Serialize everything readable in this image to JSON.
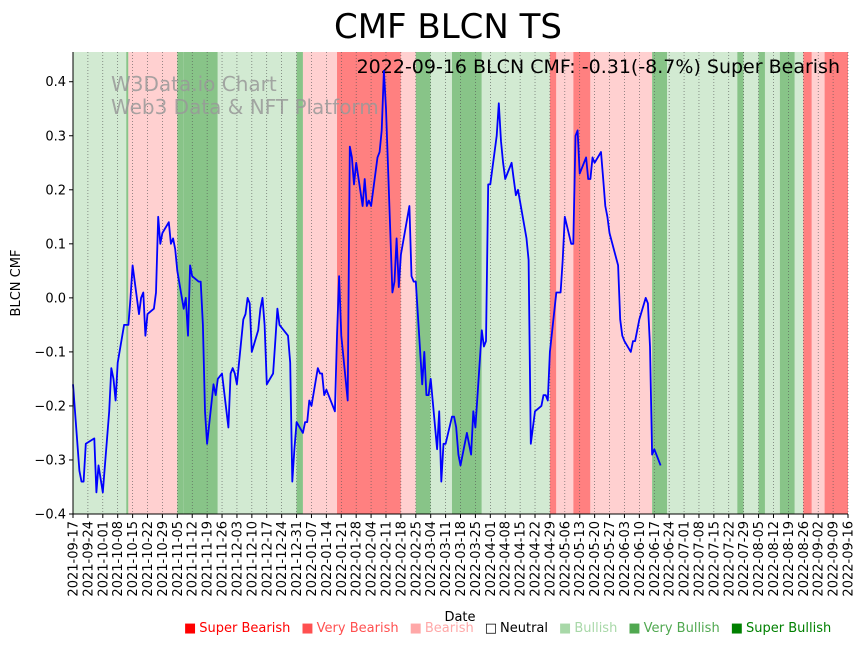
{
  "chart_data": {
    "type": "line",
    "title": "CMF BLCN TS",
    "annotation": "2022-09-16 BLCN CMF: -0.31(-8.7%) Super Bearish",
    "watermark": [
      "W3Data.io Chart",
      "Web3 Data & NFT Platform"
    ],
    "xlabel": "Date",
    "ylabel": "BLCN CMF",
    "x_range": [
      "2021-09-17",
      "2022-09-16"
    ],
    "ylim": [
      -0.4,
      0.455
    ],
    "yticks": [
      "0.4",
      "0.3",
      "0.2",
      "0.1",
      "0.0",
      "−0.1",
      "−0.2",
      "−0.3",
      "−0.4"
    ],
    "xticks": [
      "2021-09-17",
      "2021-09-24",
      "2021-10-01",
      "2021-10-08",
      "2021-10-15",
      "2021-10-22",
      "2021-10-29",
      "2021-11-05",
      "2021-11-12",
      "2021-11-19",
      "2021-11-26",
      "2021-12-03",
      "2021-12-10",
      "2021-12-17",
      "2021-12-24",
      "2021-12-31",
      "2022-01-07",
      "2022-01-14",
      "2022-01-21",
      "2022-01-28",
      "2022-02-04",
      "2022-02-11",
      "2022-02-18",
      "2022-02-25",
      "2022-03-04",
      "2022-03-11",
      "2022-03-18",
      "2022-03-25",
      "2022-04-01",
      "2022-04-08",
      "2022-04-15",
      "2022-04-22",
      "2022-04-29",
      "2022-05-06",
      "2022-05-13",
      "2022-05-20",
      "2022-05-27",
      "2022-06-03",
      "2022-06-10",
      "2022-06-17",
      "2022-06-24",
      "2022-07-01",
      "2022-07-08",
      "2022-07-15",
      "2022-07-22",
      "2022-07-29",
      "2022-08-05",
      "2022-08-12",
      "2022-08-19",
      "2022-08-26",
      "2022-09-02",
      "2022-09-09",
      "2022-09-16"
    ],
    "grid": "vertical dotted",
    "legend_position": "bottom-right",
    "series": [
      {
        "color": "#0000ff",
        "points": [
          [
            "2021-09-17",
            -0.16
          ],
          [
            "2021-09-20",
            -0.32
          ],
          [
            "2021-09-21",
            -0.34
          ],
          [
            "2021-09-22",
            -0.34
          ],
          [
            "2021-09-23",
            -0.27
          ],
          [
            "2021-09-27",
            -0.26
          ],
          [
            "2021-09-28",
            -0.36
          ],
          [
            "2021-09-29",
            -0.31
          ],
          [
            "2021-10-01",
            -0.36
          ],
          [
            "2021-10-04",
            -0.21
          ],
          [
            "2021-10-05",
            -0.13
          ],
          [
            "2021-10-06",
            -0.15
          ],
          [
            "2021-10-07",
            -0.19
          ],
          [
            "2021-10-08",
            -0.12
          ],
          [
            "2021-10-11",
            -0.05
          ],
          [
            "2021-10-12",
            -0.05
          ],
          [
            "2021-10-13",
            -0.05
          ],
          [
            "2021-10-14",
            0.0
          ],
          [
            "2021-10-15",
            0.06
          ],
          [
            "2021-10-18",
            -0.03
          ],
          [
            "2021-10-19",
            0.0
          ],
          [
            "2021-10-20",
            0.01
          ],
          [
            "2021-10-21",
            -0.07
          ],
          [
            "2021-10-22",
            -0.03
          ],
          [
            "2021-10-25",
            -0.02
          ],
          [
            "2021-10-26",
            0.01
          ],
          [
            "2021-10-27",
            0.15
          ],
          [
            "2021-10-28",
            0.1
          ],
          [
            "2021-10-29",
            0.12
          ],
          [
            "2021-11-01",
            0.14
          ],
          [
            "2021-11-02",
            0.1
          ],
          [
            "2021-11-03",
            0.11
          ],
          [
            "2021-11-04",
            0.09
          ],
          [
            "2021-11-05",
            0.05
          ],
          [
            "2021-11-08",
            -0.02
          ],
          [
            "2021-11-09",
            0.0
          ],
          [
            "2021-11-10",
            -0.07
          ],
          [
            "2021-11-11",
            0.06
          ],
          [
            "2021-11-12",
            0.04
          ],
          [
            "2021-11-15",
            0.03
          ],
          [
            "2021-11-16",
            0.03
          ],
          [
            "2021-11-17",
            -0.05
          ],
          [
            "2021-11-18",
            -0.21
          ],
          [
            "2021-11-19",
            -0.27
          ],
          [
            "2021-11-22",
            -0.16
          ],
          [
            "2021-11-23",
            -0.18
          ],
          [
            "2021-11-24",
            -0.15
          ],
          [
            "2021-11-26",
            -0.14
          ],
          [
            "2021-11-29",
            -0.24
          ],
          [
            "2021-11-30",
            -0.14
          ],
          [
            "2021-12-01",
            -0.13
          ],
          [
            "2021-12-02",
            -0.14
          ],
          [
            "2021-12-03",
            -0.16
          ],
          [
            "2021-12-06",
            -0.04
          ],
          [
            "2021-12-07",
            -0.03
          ],
          [
            "2021-12-08",
            0.0
          ],
          [
            "2021-12-09",
            -0.01
          ],
          [
            "2021-12-10",
            -0.1
          ],
          [
            "2021-12-13",
            -0.06
          ],
          [
            "2021-12-14",
            -0.02
          ],
          [
            "2021-12-15",
            0.0
          ],
          [
            "2021-12-16",
            -0.05
          ],
          [
            "2021-12-17",
            -0.16
          ],
          [
            "2021-12-20",
            -0.14
          ],
          [
            "2021-12-21",
            -0.08
          ],
          [
            "2021-12-22",
            -0.02
          ],
          [
            "2021-12-23",
            -0.05
          ],
          [
            "2021-12-27",
            -0.07
          ],
          [
            "2021-12-28",
            -0.12
          ],
          [
            "2021-12-29",
            -0.34
          ],
          [
            "2021-12-30",
            -0.28
          ],
          [
            "2021-12-31",
            -0.23
          ],
          [
            "2022-01-03",
            -0.25
          ],
          [
            "2022-01-04",
            -0.23
          ],
          [
            "2022-01-05",
            -0.23
          ],
          [
            "2022-01-06",
            -0.19
          ],
          [
            "2022-01-07",
            -0.2
          ],
          [
            "2022-01-10",
            -0.13
          ],
          [
            "2022-01-11",
            -0.14
          ],
          [
            "2022-01-12",
            -0.14
          ],
          [
            "2022-01-13",
            -0.18
          ],
          [
            "2022-01-14",
            -0.17
          ],
          [
            "2022-01-18",
            -0.21
          ],
          [
            "2022-01-19",
            -0.07
          ],
          [
            "2022-01-20",
            0.04
          ],
          [
            "2022-01-21",
            -0.07
          ],
          [
            "2022-01-24",
            -0.19
          ],
          [
            "2022-01-25",
            0.28
          ],
          [
            "2022-01-26",
            0.26
          ],
          [
            "2022-01-27",
            0.21
          ],
          [
            "2022-01-28",
            0.25
          ],
          [
            "2022-01-31",
            0.17
          ],
          [
            "2022-02-01",
            0.22
          ],
          [
            "2022-02-02",
            0.17
          ],
          [
            "2022-02-03",
            0.18
          ],
          [
            "2022-02-04",
            0.17
          ],
          [
            "2022-02-07",
            0.26
          ],
          [
            "2022-02-08",
            0.27
          ],
          [
            "2022-02-09",
            0.31
          ],
          [
            "2022-02-10",
            0.42
          ],
          [
            "2022-02-11",
            0.35
          ],
          [
            "2022-02-14",
            0.01
          ],
          [
            "2022-02-15",
            0.03
          ],
          [
            "2022-02-16",
            0.11
          ],
          [
            "2022-02-17",
            0.02
          ],
          [
            "2022-02-18",
            0.08
          ],
          [
            "2022-02-22",
            0.17
          ],
          [
            "2022-02-23",
            0.04
          ],
          [
            "2022-02-24",
            0.03
          ],
          [
            "2022-02-25",
            0.03
          ],
          [
            "2022-02-28",
            -0.16
          ],
          [
            "2022-03-01",
            -0.1
          ],
          [
            "2022-03-02",
            -0.18
          ],
          [
            "2022-03-03",
            -0.18
          ],
          [
            "2022-03-04",
            -0.15
          ],
          [
            "2022-03-07",
            -0.28
          ],
          [
            "2022-03-08",
            -0.21
          ],
          [
            "2022-03-09",
            -0.34
          ],
          [
            "2022-03-10",
            -0.27
          ],
          [
            "2022-03-11",
            -0.27
          ],
          [
            "2022-03-14",
            -0.22
          ],
          [
            "2022-03-15",
            -0.22
          ],
          [
            "2022-03-16",
            -0.24
          ],
          [
            "2022-03-17",
            -0.29
          ],
          [
            "2022-03-18",
            -0.31
          ],
          [
            "2022-03-21",
            -0.25
          ],
          [
            "2022-03-22",
            -0.27
          ],
          [
            "2022-03-23",
            -0.29
          ],
          [
            "2022-03-24",
            -0.21
          ],
          [
            "2022-03-25",
            -0.24
          ],
          [
            "2022-03-28",
            -0.06
          ],
          [
            "2022-03-29",
            -0.09
          ],
          [
            "2022-03-30",
            -0.08
          ],
          [
            "2022-03-31",
            0.21
          ],
          [
            "2022-04-01",
            0.21
          ],
          [
            "2022-04-04",
            0.3
          ],
          [
            "2022-04-05",
            0.36
          ],
          [
            "2022-04-06",
            0.29
          ],
          [
            "2022-04-07",
            0.25
          ],
          [
            "2022-04-08",
            0.22
          ],
          [
            "2022-04-11",
            0.25
          ],
          [
            "2022-04-12",
            0.22
          ],
          [
            "2022-04-13",
            0.19
          ],
          [
            "2022-04-14",
            0.2
          ],
          [
            "2022-04-18",
            0.11
          ],
          [
            "2022-04-19",
            0.07
          ],
          [
            "2022-04-20",
            -0.27
          ],
          [
            "2022-04-21",
            -0.24
          ],
          [
            "2022-04-22",
            -0.21
          ],
          [
            "2022-04-25",
            -0.2
          ],
          [
            "2022-04-26",
            -0.18
          ],
          [
            "2022-04-27",
            -0.18
          ],
          [
            "2022-04-28",
            -0.19
          ],
          [
            "2022-04-29",
            -0.1
          ],
          [
            "2022-05-02",
            0.01
          ],
          [
            "2022-05-03",
            0.01
          ],
          [
            "2022-05-04",
            0.01
          ],
          [
            "2022-05-05",
            0.07
          ],
          [
            "2022-05-06",
            0.15
          ],
          [
            "2022-05-09",
            0.1
          ],
          [
            "2022-05-10",
            0.1
          ],
          [
            "2022-05-11",
            0.3
          ],
          [
            "2022-05-12",
            0.31
          ],
          [
            "2022-05-13",
            0.23
          ],
          [
            "2022-05-16",
            0.26
          ],
          [
            "2022-05-17",
            0.22
          ],
          [
            "2022-05-18",
            0.22
          ],
          [
            "2022-05-19",
            0.26
          ],
          [
            "2022-05-20",
            0.25
          ],
          [
            "2022-05-23",
            0.27
          ],
          [
            "2022-05-24",
            0.22
          ],
          [
            "2022-05-25",
            0.17
          ],
          [
            "2022-05-26",
            0.15
          ],
          [
            "2022-05-27",
            0.12
          ],
          [
            "2022-05-31",
            0.06
          ],
          [
            "2022-06-01",
            -0.04
          ],
          [
            "2022-06-02",
            -0.07
          ],
          [
            "2022-06-03",
            -0.08
          ],
          [
            "2022-06-06",
            -0.1
          ],
          [
            "2022-06-07",
            -0.08
          ],
          [
            "2022-06-08",
            -0.08
          ],
          [
            "2022-06-09",
            -0.06
          ],
          [
            "2022-06-10",
            -0.04
          ],
          [
            "2022-06-13",
            0.0
          ],
          [
            "2022-06-14",
            -0.01
          ],
          [
            "2022-06-15",
            -0.09
          ],
          [
            "2022-06-16",
            -0.29
          ],
          [
            "2022-06-17",
            -0.28
          ],
          [
            "2022-06-20",
            -0.31
          ]
        ]
      }
    ],
    "legend": [
      {
        "label": "Super Bearish",
        "color": "#ff0000"
      },
      {
        "label": "Very Bearish",
        "color": "#ff5050"
      },
      {
        "label": "Bearish",
        "color": "#ffa8a8"
      },
      {
        "label": "Neutral",
        "color": "#000000"
      },
      {
        "label": "Bullish",
        "color": "#a8d8a8"
      },
      {
        "label": "Very Bullish",
        "color": "#50a850"
      },
      {
        "label": "Super Bullish",
        "color": "#008000"
      }
    ],
    "bands": [
      {
        "from": "2021-09-17",
        "to": "2021-10-12",
        "level": "Bullish"
      },
      {
        "from": "2021-10-12",
        "to": "2021-10-13",
        "level": "Very Bullish"
      },
      {
        "from": "2021-10-13",
        "to": "2021-11-05",
        "level": "Bearish"
      },
      {
        "from": "2021-11-05",
        "to": "2021-11-08",
        "level": "Very Bullish"
      },
      {
        "from": "2021-11-08",
        "to": "2021-11-24",
        "level": "Very Bullish"
      },
      {
        "from": "2021-11-24",
        "to": "2021-12-31",
        "level": "Bullish"
      },
      {
        "from": "2021-12-31",
        "to": "2022-01-03",
        "level": "Very Bullish"
      },
      {
        "from": "2022-01-03",
        "to": "2022-01-19",
        "level": "Bearish"
      },
      {
        "from": "2022-01-19",
        "to": "2022-02-11",
        "level": "Very Bearish"
      },
      {
        "from": "2022-02-11",
        "to": "2022-02-18",
        "level": "Very Bearish"
      },
      {
        "from": "2022-02-18",
        "to": "2022-02-25",
        "level": "Bearish"
      },
      {
        "from": "2022-02-25",
        "to": "2022-03-04",
        "level": "Very Bullish"
      },
      {
        "from": "2022-03-04",
        "to": "2022-03-14",
        "level": "Bullish"
      },
      {
        "from": "2022-03-14",
        "to": "2022-03-28",
        "level": "Very Bullish"
      },
      {
        "from": "2022-03-28",
        "to": "2022-04-29",
        "level": "Bullish"
      },
      {
        "from": "2022-04-29",
        "to": "2022-05-02",
        "level": "Very Bearish"
      },
      {
        "from": "2022-05-02",
        "to": "2022-05-10",
        "level": "Bearish"
      },
      {
        "from": "2022-05-10",
        "to": "2022-05-18",
        "level": "Very Bearish"
      },
      {
        "from": "2022-05-18",
        "to": "2022-06-16",
        "level": "Bearish"
      },
      {
        "from": "2022-06-16",
        "to": "2022-06-23",
        "level": "Very Bullish"
      },
      {
        "from": "2022-06-23",
        "to": "2022-07-26",
        "level": "Bullish"
      },
      {
        "from": "2022-07-26",
        "to": "2022-07-29",
        "level": "Very Bullish"
      },
      {
        "from": "2022-07-29",
        "to": "2022-08-05",
        "level": "Bullish"
      },
      {
        "from": "2022-08-05",
        "to": "2022-08-08",
        "level": "Very Bullish"
      },
      {
        "from": "2022-08-08",
        "to": "2022-08-15",
        "level": "Bullish"
      },
      {
        "from": "2022-08-15",
        "to": "2022-08-22",
        "level": "Very Bullish"
      },
      {
        "from": "2022-08-22",
        "to": "2022-08-26",
        "level": "Bullish"
      },
      {
        "from": "2022-08-26",
        "to": "2022-08-30",
        "level": "Very Bearish"
      },
      {
        "from": "2022-08-30",
        "to": "2022-09-05",
        "level": "Bearish"
      },
      {
        "from": "2022-09-05",
        "to": "2022-09-16",
        "level": "Very Bearish"
      }
    ],
    "band_colors": {
      "Bearish": "#ffd0d0",
      "Very Bearish": "#ff8080",
      "Bullish": "#d2ead2",
      "Very Bullish": "#88c488",
      "Super Bullish": "#2e8b2e"
    }
  }
}
